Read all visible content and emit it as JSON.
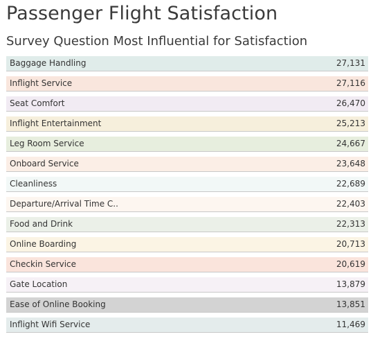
{
  "header": {
    "title": "Passenger Flight Satisfaction",
    "subtitle": "Survey Question Most Influential for Satisfaction"
  },
  "rows": [
    {
      "label": "Baggage Handling",
      "value": "27,131",
      "color": "#e0ecea"
    },
    {
      "label": "Inflight Service",
      "value": "27,116",
      "color": "#f9e6dd"
    },
    {
      "label": "Seat Comfort",
      "value": "26,470",
      "color": "#f1ebf3"
    },
    {
      "label": "Inflight Entertainment",
      "value": "25,213",
      "color": "#f6efdc"
    },
    {
      "label": "Leg Room Service",
      "value": "24,667",
      "color": "#e7eede"
    },
    {
      "label": "Onboard Service",
      "value": "23,648",
      "color": "#fbeee6"
    },
    {
      "label": "Cleanliness",
      "value": "22,689",
      "color": "#f2f8f7"
    },
    {
      "label": "Departure/Arrival Time C..",
      "value": "22,403",
      "color": "#fdf6f0"
    },
    {
      "label": "Food and Drink",
      "value": "22,313",
      "color": "#ebf0e8"
    },
    {
      "label": "Online Boarding",
      "value": "20,713",
      "color": "#fbf4e4"
    },
    {
      "label": "Checkin Service",
      "value": "20,619",
      "color": "#fae4dc"
    },
    {
      "label": "Gate Location",
      "value": "13,879",
      "color": "#f6f1f6"
    },
    {
      "label": "Ease of Online Booking",
      "value": "13,851",
      "color": "#d3d3d3"
    },
    {
      "label": "Inflight Wifi Service",
      "value": "11,469",
      "color": "#e4ecec"
    }
  ]
}
